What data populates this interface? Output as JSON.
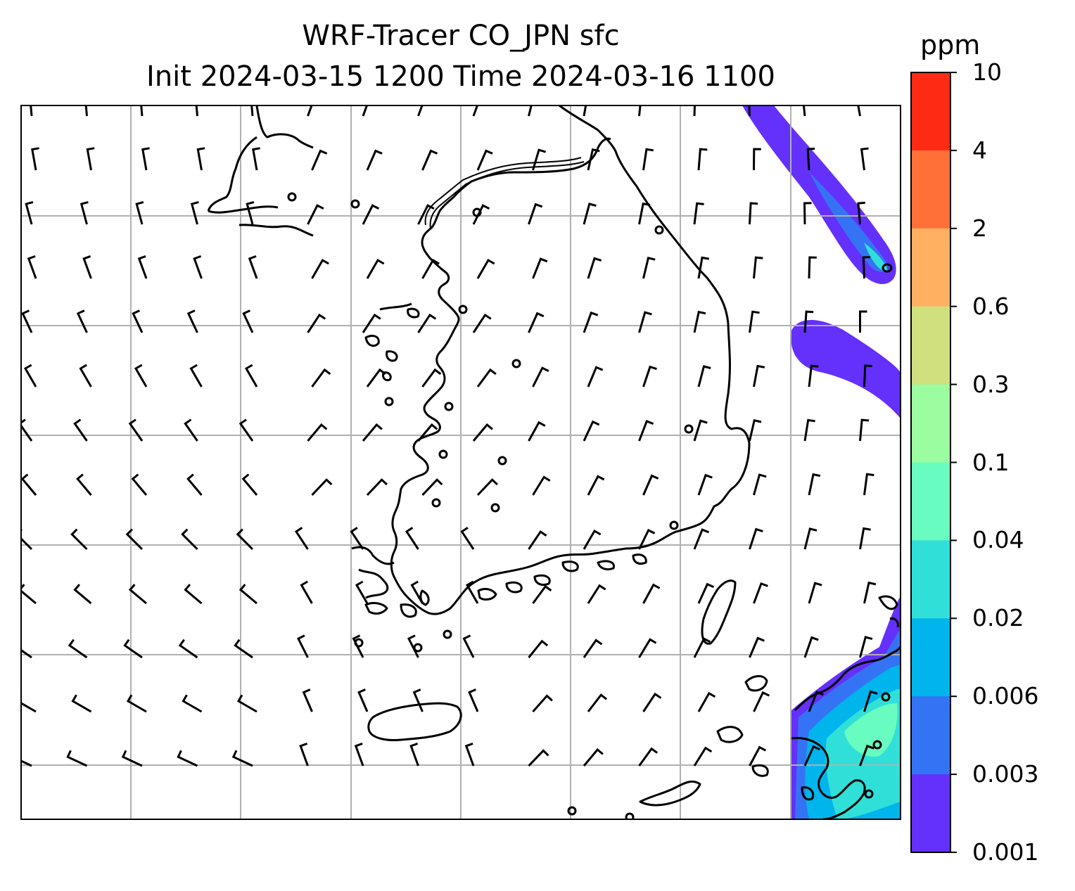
{
  "title": {
    "line1": "WRF-Tracer CO_JPN sfc",
    "line2": "Init 2024-03-15 1200 Time 2024-03-16 1100"
  },
  "colorbar": {
    "unit": "ppm",
    "levels": [
      "10",
      "4",
      "2",
      "0.6",
      "0.3",
      "0.1",
      "0.04",
      "0.02",
      "0.006",
      "0.003",
      "0.001"
    ],
    "colors": [
      "#ff2a14",
      "#ff7038",
      "#ffb060",
      "#d0e07e",
      "#9cfca0",
      "#68fcc0",
      "#30e0d8",
      "#00b4ec",
      "#3474f4",
      "#6430fc"
    ]
  },
  "map": {
    "layers": [
      "coastlines",
      "lat-lon-gridlines",
      "wind-barbs",
      "CO-tracer-filled-contours"
    ],
    "gridline_color": "#b0b0b0"
  }
}
